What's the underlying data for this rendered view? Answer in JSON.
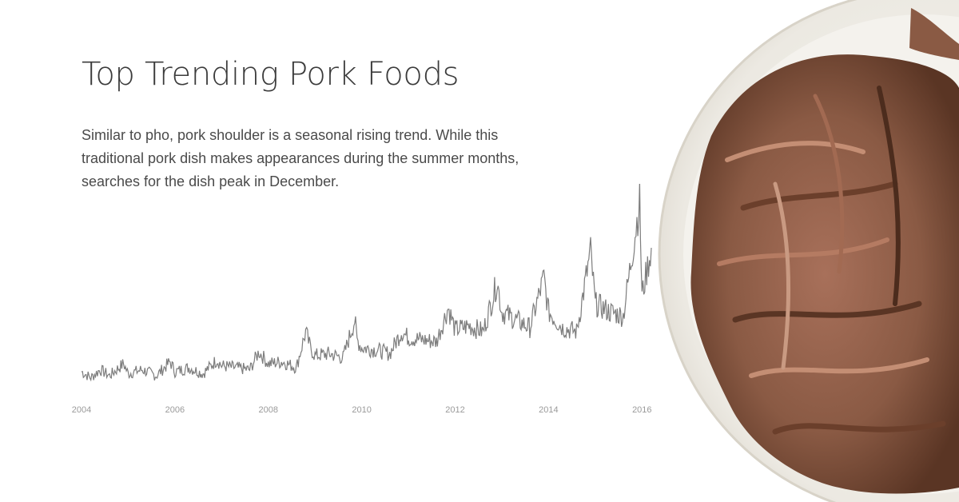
{
  "header": {
    "title": "Top Trending Pork Foods",
    "description": "Similar to pho, pork shoulder is a seasonal rising trend. While this traditional pork dish makes appearances during the summer months, searches for the dish peak in December."
  },
  "colors": {
    "line": "#7d7d7d",
    "plate": "#f3f1ec",
    "meat": "#8a5a44"
  },
  "chart_data": {
    "type": "line",
    "title": "",
    "xlabel": "",
    "ylabel": "",
    "xlim": [
      2004,
      2016.2
    ],
    "ylim": [
      0,
      100
    ],
    "grid": false,
    "x_ticks": [
      "2004",
      "2006",
      "2008",
      "2010",
      "2012",
      "2014",
      "2016"
    ],
    "series": [
      {
        "points": [
          [
            2004.0,
            10
          ],
          [
            2004.2,
            7
          ],
          [
            2004.4,
            11
          ],
          [
            2004.6,
            8
          ],
          [
            2004.9,
            14
          ],
          [
            2005.0,
            9
          ],
          [
            2005.3,
            11
          ],
          [
            2005.6,
            8
          ],
          [
            2005.9,
            15
          ],
          [
            2006.0,
            10
          ],
          [
            2006.3,
            12
          ],
          [
            2006.6,
            9
          ],
          [
            2006.9,
            16
          ],
          [
            2007.0,
            13
          ],
          [
            2007.3,
            12
          ],
          [
            2007.6,
            11
          ],
          [
            2007.8,
            20
          ],
          [
            2008.0,
            14
          ],
          [
            2008.3,
            15
          ],
          [
            2008.6,
            12
          ],
          [
            2008.8,
            30
          ],
          [
            2008.9,
            22
          ],
          [
            2009.0,
            18
          ],
          [
            2009.3,
            19
          ],
          [
            2009.6,
            17
          ],
          [
            2009.85,
            36
          ],
          [
            2009.9,
            26
          ],
          [
            2010.0,
            22
          ],
          [
            2010.3,
            21
          ],
          [
            2010.6,
            19
          ],
          [
            2010.85,
            30
          ],
          [
            2011.0,
            27
          ],
          [
            2011.3,
            26
          ],
          [
            2011.6,
            25
          ],
          [
            2011.85,
            42
          ],
          [
            2012.0,
            31
          ],
          [
            2012.3,
            33
          ],
          [
            2012.6,
            30
          ],
          [
            2012.9,
            55
          ],
          [
            2013.0,
            40
          ],
          [
            2013.3,
            36
          ],
          [
            2013.6,
            32
          ],
          [
            2013.9,
            57
          ],
          [
            2014.0,
            40
          ],
          [
            2014.3,
            32
          ],
          [
            2014.6,
            30
          ],
          [
            2014.9,
            70
          ],
          [
            2015.0,
            44
          ],
          [
            2015.3,
            40
          ],
          [
            2015.6,
            38
          ],
          [
            2015.95,
            95
          ],
          [
            2016.0,
            48
          ],
          [
            2016.1,
            60
          ],
          [
            2016.2,
            72
          ]
        ]
      }
    ]
  }
}
